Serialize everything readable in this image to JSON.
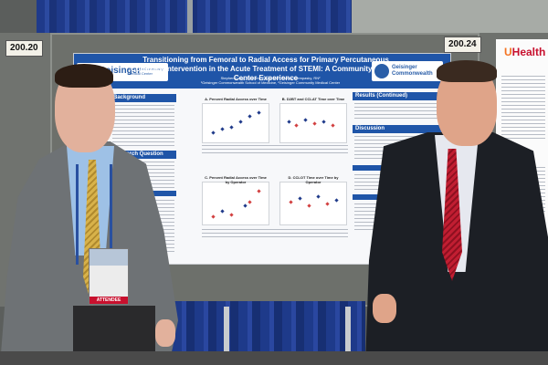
{
  "booth": {
    "left_number": "200.20",
    "right_number": "200.24"
  },
  "poster": {
    "title": "Transitioning from Femoral to Radial Access for Primary Percutaneous Coronary Intervention in the Acute Treatment of STEMI: A Community Medical Center Experience",
    "authors": "Stephen Long¹, Stephen Voyce, MD², Nancy Krempasky, RN²",
    "affiliations": "¹Geisinger Commonwealth School of Medicine, ²Geisinger Community Medical Center",
    "logo_left": "Geisinger",
    "logo_left_sub": "Geisinger Community Medical Center",
    "logo_right": "Geisinger Commonwealth",
    "sections": {
      "background": "Background",
      "question": "Research Question",
      "results_continued": "Results (Continued)",
      "discussion": "Discussion"
    },
    "charts": {
      "a": "A. Percent Radial Access over Time",
      "b": "B. D2BT and CCLAT Time over Time",
      "c": "C. Percent Radial Access over Time by Operator",
      "d": "D. CCLOT Time over Time by Operator"
    }
  },
  "right_poster": {
    "logo_u": "U",
    "logo_text": "Health"
  },
  "badge": {
    "label": "ATTENDEE"
  }
}
